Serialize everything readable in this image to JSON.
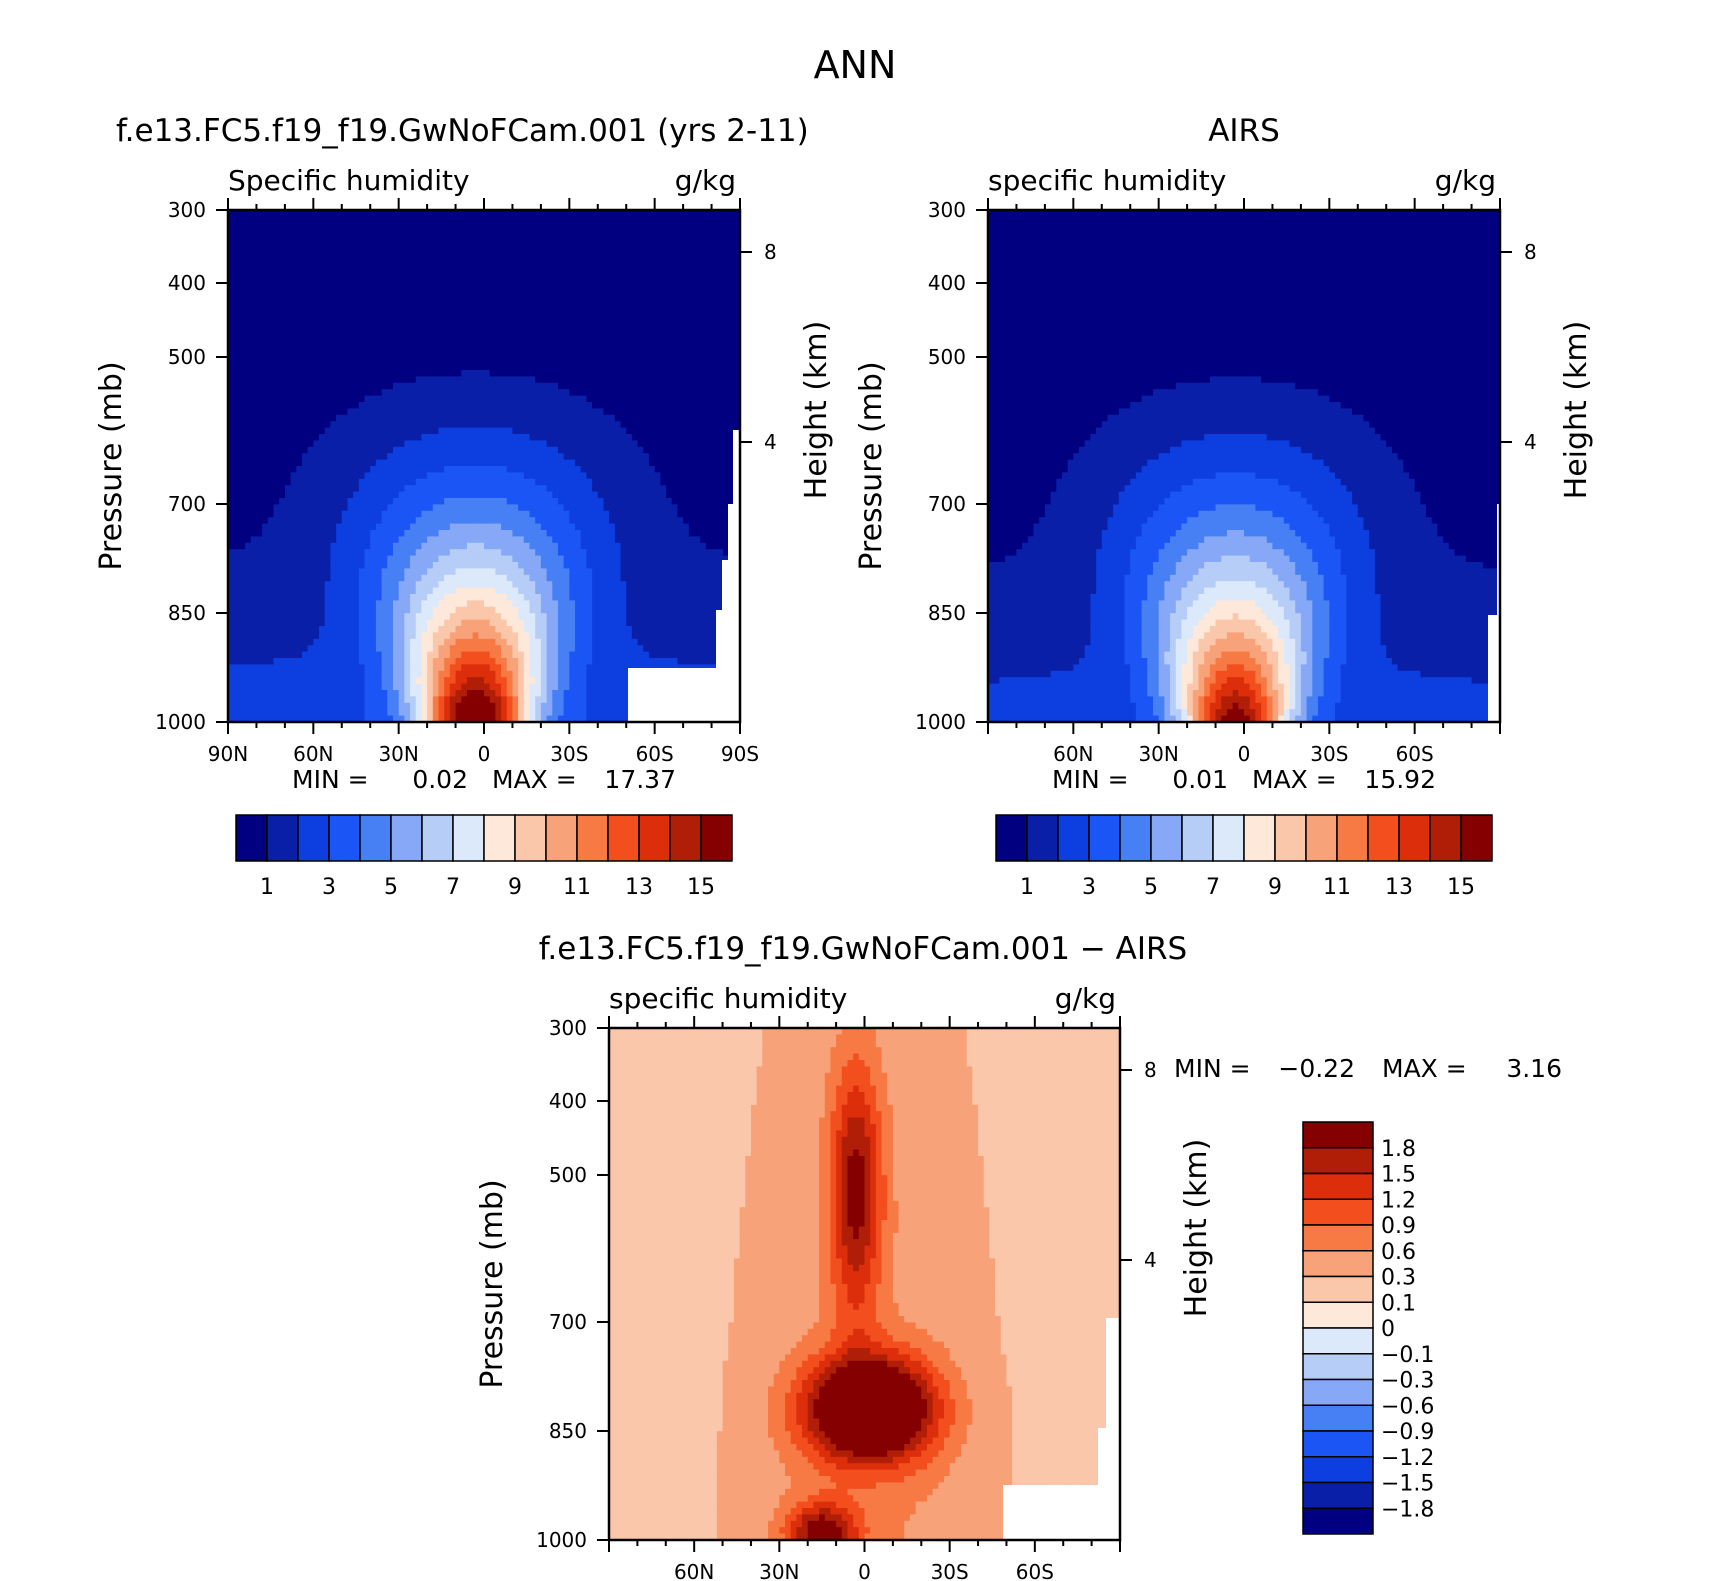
{
  "title": "ANN",
  "colors": {
    "main_scale": [
      "#000080",
      "#0a1fa8",
      "#0d3ee0",
      "#1c55f6",
      "#4680f4",
      "#86a8f6",
      "#b6cdf8",
      "#dce9fa",
      "#fde8da",
      "#fbc7aa",
      "#f8a27a",
      "#f77a45",
      "#f24e1e",
      "#dc2e0a",
      "#b01e08",
      "#850000"
    ],
    "diff_scale": [
      "#850000",
      "#b01e08",
      "#dc2e0a",
      "#f24e1e",
      "#f77a45",
      "#f8a27a",
      "#fbc7aa",
      "#fde8da",
      "#dce9fa",
      "#b6cdf8",
      "#86a8f6",
      "#4680f4",
      "#1c55f6",
      "#0d3ee0",
      "#0a1fa8",
      "#000080"
    ],
    "missing": "#ffffff"
  },
  "chart_data": [
    {
      "type": "contour",
      "panel": "model",
      "title": "f.e13.FC5.f19_f19.GwNoFCam.001 (yrs 2-11)",
      "left_label": "Specific humidity",
      "right_label": "g/kg",
      "ylabel": "Pressure (mb)",
      "y2label": "Height (km)",
      "xticks": [
        "90N",
        "60N",
        "30N",
        "0",
        "30S",
        "60S",
        "90S"
      ],
      "yticks": [
        "300",
        "400",
        "500",
        "700",
        "850",
        "1000"
      ],
      "y2ticks": [
        "8",
        "4"
      ],
      "xlim": [
        90,
        -90
      ],
      "ylim": [
        300,
        1000
      ],
      "min_label": "MIN =",
      "min_value": "0.02",
      "max_label": "MAX =",
      "max_value": "17.37",
      "colorbar_labels": [
        "1",
        "3",
        "5",
        "7",
        "9",
        "11",
        "13",
        "15"
      ],
      "levels": [
        1,
        2,
        3,
        4,
        5,
        6,
        7,
        8,
        9,
        10,
        11,
        12,
        13,
        14,
        15
      ],
      "peak_lat": 3,
      "peak_value": 17.37
    },
    {
      "type": "contour",
      "panel": "obs",
      "title": "AIRS",
      "left_label": "specific humidity",
      "right_label": "g/kg",
      "ylabel": "Pressure (mb)",
      "y2label": "Height (km)",
      "xticks": [
        "60N",
        "30N",
        "0",
        "30S",
        "60S"
      ],
      "yticks": [
        "300",
        "400",
        "500",
        "700",
        "850",
        "1000"
      ],
      "y2ticks": [
        "8",
        "4"
      ],
      "xlim": [
        90,
        -90
      ],
      "ylim": [
        300,
        1000
      ],
      "min_label": "MIN =",
      "min_value": "0.01",
      "max_label": "MAX =",
      "max_value": "15.92",
      "colorbar_labels": [
        "1",
        "3",
        "5",
        "7",
        "9",
        "11",
        "13",
        "15"
      ],
      "levels": [
        1,
        2,
        3,
        4,
        5,
        6,
        7,
        8,
        9,
        10,
        11,
        12,
        13,
        14,
        15
      ],
      "peak_lat": 3,
      "peak_value": 15.92
    },
    {
      "type": "contour",
      "panel": "diff",
      "title": "f.e13.FC5.f19_f19.GwNoFCam.001 − AIRS",
      "left_label": "specific humidity",
      "right_label": "g/kg",
      "ylabel": "Pressure (mb)",
      "y2label": "Height (km)",
      "xticks": [
        "60N",
        "30N",
        "0",
        "30S",
        "60S"
      ],
      "yticks": [
        "300",
        "400",
        "500",
        "700",
        "850",
        "1000"
      ],
      "y2ticks": [
        "8",
        "4"
      ],
      "xlim": [
        90,
        -90
      ],
      "ylim": [
        300,
        1000
      ],
      "min_label": "MIN =",
      "min_value": "−0.22",
      "max_label": "MAX =",
      "max_value": "3.16",
      "colorbar_labels": [
        "1.8",
        "1.5",
        "1.2",
        "0.9",
        "0.6",
        "0.3",
        "0.1",
        "0",
        "−0.1",
        "−0.3",
        "−0.6",
        "−0.9",
        "−1.2",
        "−1.5",
        "−1.8"
      ],
      "levels": [
        -1.8,
        -1.5,
        -1.2,
        -0.9,
        -0.6,
        -0.3,
        -0.1,
        0,
        0.1,
        0.3,
        0.6,
        0.9,
        1.2,
        1.5,
        1.8
      ]
    }
  ]
}
